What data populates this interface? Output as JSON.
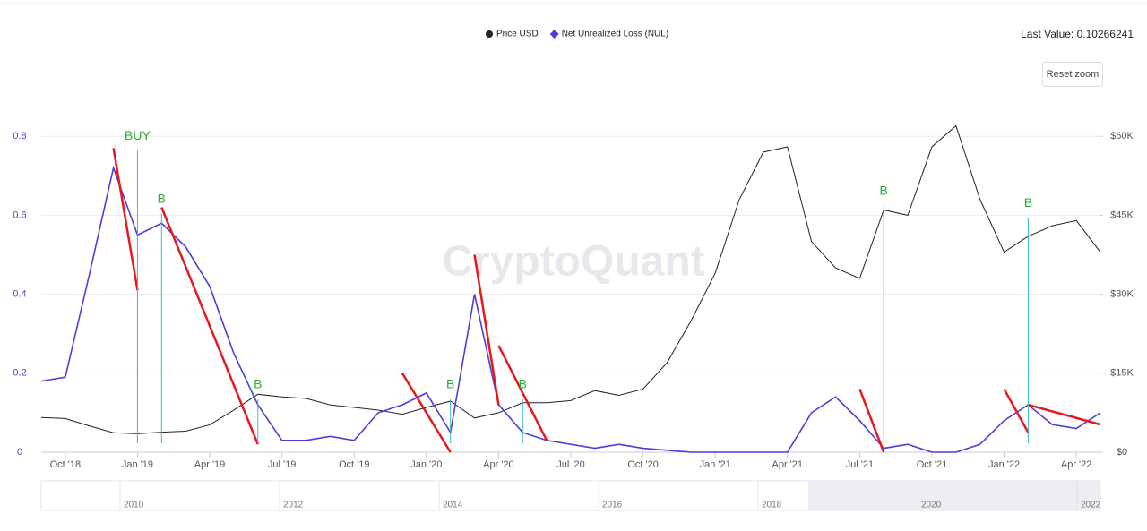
{
  "chart_data": {
    "type": "line",
    "last_value": "Last Value: 0.10266241",
    "reset_button": "Reset zoom",
    "watermark": "CryptoQuant",
    "x": [
      "2018-09",
      "2018-10",
      "2018-11",
      "2018-12",
      "2019-01",
      "2019-02",
      "2019-03",
      "2019-04",
      "2019-05",
      "2019-06",
      "2019-07",
      "2019-08",
      "2019-09",
      "2019-10",
      "2019-11",
      "2019-12",
      "2020-01",
      "2020-02",
      "2020-03",
      "2020-04",
      "2020-05",
      "2020-06",
      "2020-07",
      "2020-08",
      "2020-09",
      "2020-10",
      "2020-11",
      "2020-12",
      "2021-01",
      "2021-02",
      "2021-03",
      "2021-04",
      "2021-05",
      "2021-06",
      "2021-07",
      "2021-08",
      "2021-09",
      "2021-10",
      "2021-11",
      "2021-12",
      "2022-01",
      "2022-02",
      "2022-03",
      "2022-04",
      "2022-05"
    ],
    "series": [
      {
        "name": "Price USD",
        "color": "#222222",
        "axis": "y2",
        "marker": "circle",
        "values": [
          6600,
          6400,
          5000,
          3700,
          3500,
          3800,
          4000,
          5200,
          8000,
          11000,
          10500,
          10200,
          9000,
          8500,
          8000,
          7200,
          8500,
          9700,
          6500,
          7500,
          9400,
          9400,
          9800,
          11700,
          10800,
          12000,
          17000,
          25000,
          34000,
          48000,
          57000,
          58000,
          40000,
          35000,
          33000,
          46000,
          45000,
          58000,
          62000,
          48000,
          38000,
          41000,
          43000,
          44000,
          38000
        ]
      },
      {
        "name": "Net Unrealized Loss (NUL)",
        "color": "#4b3fdc",
        "axis": "y",
        "marker": "diamond",
        "values": [
          0.18,
          0.19,
          0.45,
          0.72,
          0.55,
          0.58,
          0.52,
          0.42,
          0.25,
          0.12,
          0.03,
          0.03,
          0.04,
          0.03,
          0.1,
          0.12,
          0.15,
          0.05,
          0.4,
          0.12,
          0.05,
          0.03,
          0.02,
          0.01,
          0.02,
          0.01,
          0.005,
          0,
          0,
          0,
          0,
          0,
          0.1,
          0.14,
          0.08,
          0.01,
          0.02,
          0,
          0,
          0.02,
          0.08,
          0.12,
          0.07,
          0.06,
          0.1
        ]
      }
    ],
    "xlim": [
      "2018-09",
      "2022-05"
    ],
    "xticks": [
      {
        "value": "2018-10",
        "label": "Oct '18"
      },
      {
        "value": "2019-01",
        "label": "Jan '19"
      },
      {
        "value": "2019-04",
        "label": "Apr '19"
      },
      {
        "value": "2019-07",
        "label": "Jul '19"
      },
      {
        "value": "2019-10",
        "label": "Oct '19"
      },
      {
        "value": "2020-01",
        "label": "Jan '20"
      },
      {
        "value": "2020-04",
        "label": "Apr '20"
      },
      {
        "value": "2020-07",
        "label": "Jul '20"
      },
      {
        "value": "2020-10",
        "label": "Oct '20"
      },
      {
        "value": "2021-01",
        "label": "Jan '21"
      },
      {
        "value": "2021-04",
        "label": "Apr '21"
      },
      {
        "value": "2021-07",
        "label": "Jul '21"
      },
      {
        "value": "2021-10",
        "label": "Oct '21"
      },
      {
        "value": "2022-01",
        "label": "Jan '22"
      },
      {
        "value": "2022-04",
        "label": "Apr '22"
      }
    ],
    "ylim": [
      0,
      1.0
    ],
    "yticks": [
      0,
      0.2,
      0.4,
      0.6,
      0.8
    ],
    "y2lim": [
      0,
      75000
    ],
    "y2ticks": [
      {
        "value": 0,
        "label": "$0"
      },
      {
        "value": 15000,
        "label": "$15K"
      },
      {
        "value": 30000,
        "label": "$30K"
      },
      {
        "value": 45000,
        "label": "$45K"
      },
      {
        "value": 60000,
        "label": "$60K"
      }
    ],
    "grid": true,
    "signals": [
      {
        "label": "BUY",
        "x": "2019-01",
        "level": 0.8
      },
      {
        "label": "B",
        "x": "2019-02",
        "level": 0.64
      },
      {
        "label": "B",
        "x": "2019-06",
        "level": 0.17
      },
      {
        "label": "B",
        "x": "2020-02",
        "level": 0.17
      },
      {
        "label": "B",
        "x": "2020-05",
        "level": 0.17
      },
      {
        "label": "B",
        "x": "2021-08",
        "level": 0.66
      },
      {
        "label": "B",
        "x": "2022-02",
        "level": 0.63
      }
    ],
    "trend_lines": [
      {
        "x": [
          "2018-12",
          "2019-01"
        ],
        "values": [
          0.77,
          0.41
        ]
      },
      {
        "x": [
          "2019-02",
          "2019-06"
        ],
        "values": [
          0.62,
          0.02
        ]
      },
      {
        "x": [
          "2019-12",
          "2020-02"
        ],
        "values": [
          0.2,
          0
        ]
      },
      {
        "x": [
          "2020-03",
          "2020-04"
        ],
        "values": [
          0.5,
          0.12
        ]
      },
      {
        "x": [
          "2020-04",
          "2020-06"
        ],
        "values": [
          0.27,
          0.03
        ]
      },
      {
        "x": [
          "2021-07",
          "2021-08"
        ],
        "values": [
          0.16,
          0
        ]
      },
      {
        "x": [
          "2022-01",
          "2022-02"
        ],
        "values": [
          0.16,
          0.05
        ]
      },
      {
        "x": [
          "2022-02",
          "2022-05"
        ],
        "values": [
          0.12,
          0.07
        ]
      }
    ],
    "navigator_labels": [
      "2010",
      "2012",
      "2014",
      "2016",
      "2018",
      "2020",
      "2022"
    ]
  }
}
